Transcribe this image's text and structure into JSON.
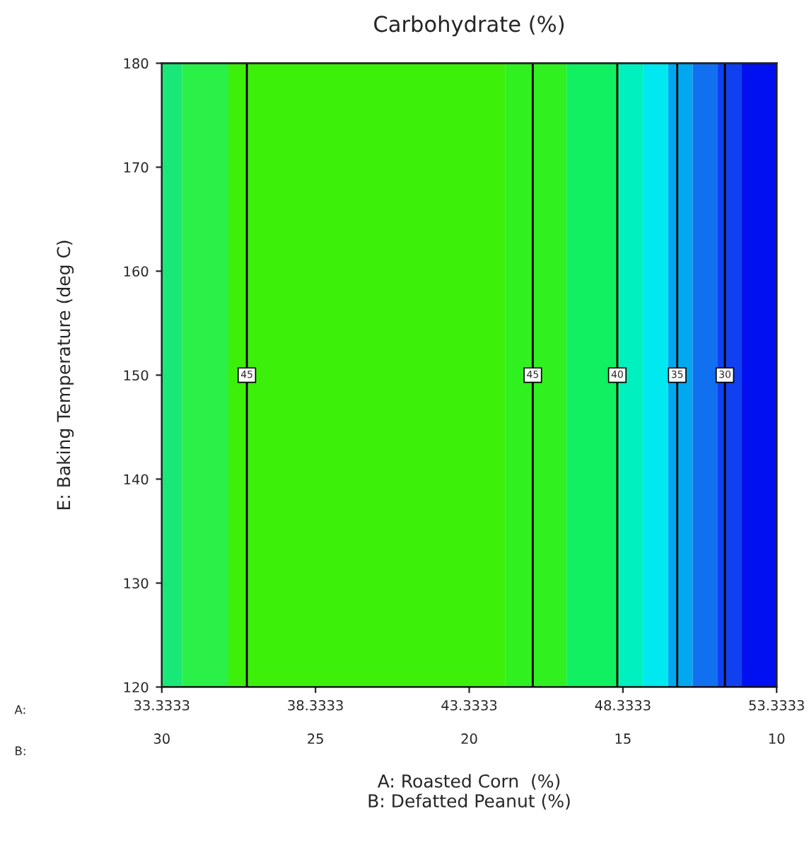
{
  "chart_data": {
    "type": "line",
    "title": "Carbohydrate (%)",
    "xlabel": "A: Roasted Corn  (%)",
    "x2label": "B: Defatted Peanut (%)",
    "ylabel": "E: Baking Temperature (deg C)",
    "xlim": [
      33.3333,
      53.3333
    ],
    "xticks": [
      33.3333,
      38.3333,
      43.3333,
      48.3333,
      53.3333
    ],
    "x2lim": [
      30,
      10
    ],
    "x2ticks": [
      30,
      25,
      20,
      15,
      10
    ],
    "ylim": [
      120,
      180
    ],
    "yticks": [
      120,
      130,
      140,
      150,
      160,
      170,
      180
    ],
    "annotations": [
      "A:",
      "B:"
    ],
    "bands": [
      {
        "axis": "x",
        "from": 33.3333,
        "to": 34.0,
        "color": "#19e878"
      },
      {
        "axis": "x",
        "from": 34.0,
        "to": 35.5,
        "color": "#2af048"
      },
      {
        "axis": "x",
        "from": 35.5,
        "to": 44.5,
        "color": "#3cf00a"
      },
      {
        "axis": "x",
        "from": 44.5,
        "to": 46.5,
        "color": "#30f020"
      },
      {
        "axis": "x",
        "from": 46.5,
        "to": 48.2,
        "color": "#10f060"
      },
      {
        "axis": "x",
        "from": 48.2,
        "to": 49.0,
        "color": "#00f0c0"
      },
      {
        "axis": "x",
        "from": 49.0,
        "to": 49.8,
        "color": "#00e8f0"
      },
      {
        "axis": "x",
        "from": 49.8,
        "to": 50.6,
        "color": "#00a8f0"
      },
      {
        "axis": "x",
        "from": 50.6,
        "to": 51.4,
        "color": "#1070f0"
      },
      {
        "axis": "x",
        "from": 51.4,
        "to": 52.2,
        "color": "#1040f0"
      },
      {
        "axis": "x",
        "from": 52.2,
        "to": 53.3333,
        "color": "#0010f0"
      }
    ],
    "series": [
      {
        "name": "45",
        "color": "#000000",
        "x": [
          36.1,
          36.1
        ],
        "values": [
          120,
          180
        ]
      },
      {
        "name": "45",
        "color": "#000000",
        "x": [
          45.4,
          45.4
        ],
        "values": [
          120,
          180
        ]
      },
      {
        "name": "40",
        "color": "#000000",
        "x": [
          48.15,
          48.15
        ],
        "values": [
          120,
          180
        ]
      },
      {
        "name": "35",
        "color": "#000000",
        "x": [
          50.1,
          50.1
        ],
        "values": [
          120,
          180
        ]
      },
      {
        "name": "30",
        "color": "#000000",
        "x": [
          51.65,
          51.65
        ],
        "values": [
          120,
          180
        ]
      }
    ]
  }
}
